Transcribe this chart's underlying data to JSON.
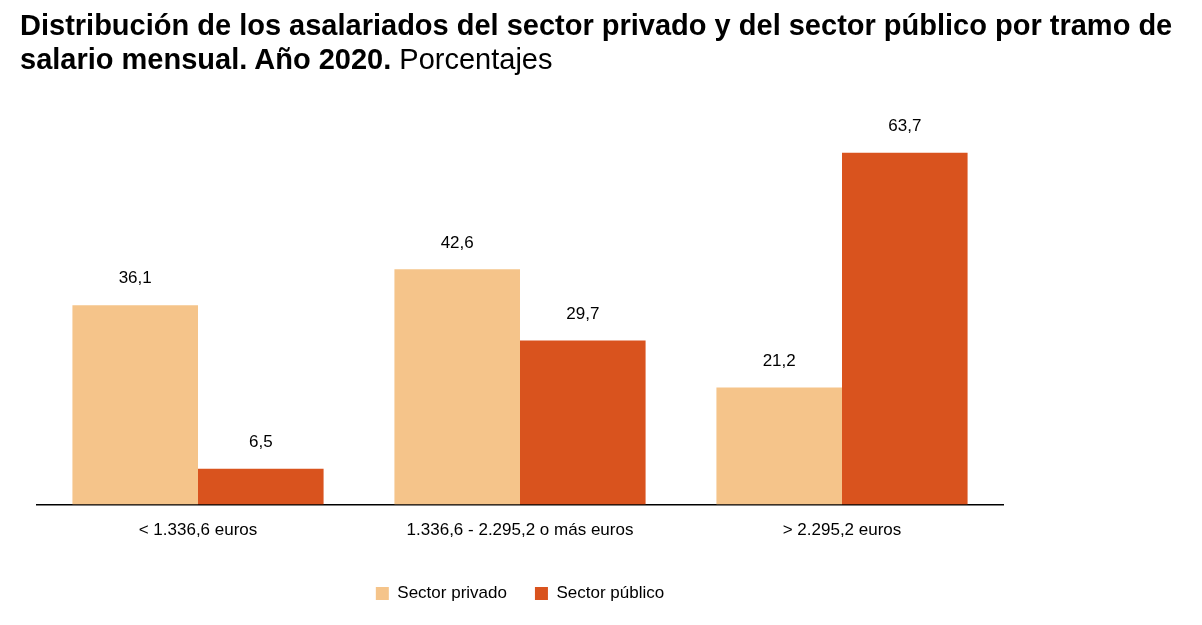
{
  "chart_data": {
    "type": "bar",
    "title": "Distribución de los asalariados del sector privado y del sector público por tramo de salario mensual. Año 2020.",
    "subtitle": "Porcentajes",
    "categories": [
      "< 1.336,6 euros",
      "1.336,6 - 2.295,2 o más euros",
      "> 2.295,2 euros"
    ],
    "series": [
      {
        "name": "Sector privado",
        "color": "#f5c48a",
        "values": [
          36.1,
          42.6,
          21.2
        ],
        "value_labels": [
          "36,1",
          "42,6",
          "21,2"
        ]
      },
      {
        "name": "Sector público",
        "color": "#d9531e",
        "values": [
          6.5,
          29.7,
          63.7
        ],
        "value_labels": [
          "6,5",
          "29,7",
          "63,7"
        ]
      }
    ],
    "legend": "bottom"
  }
}
